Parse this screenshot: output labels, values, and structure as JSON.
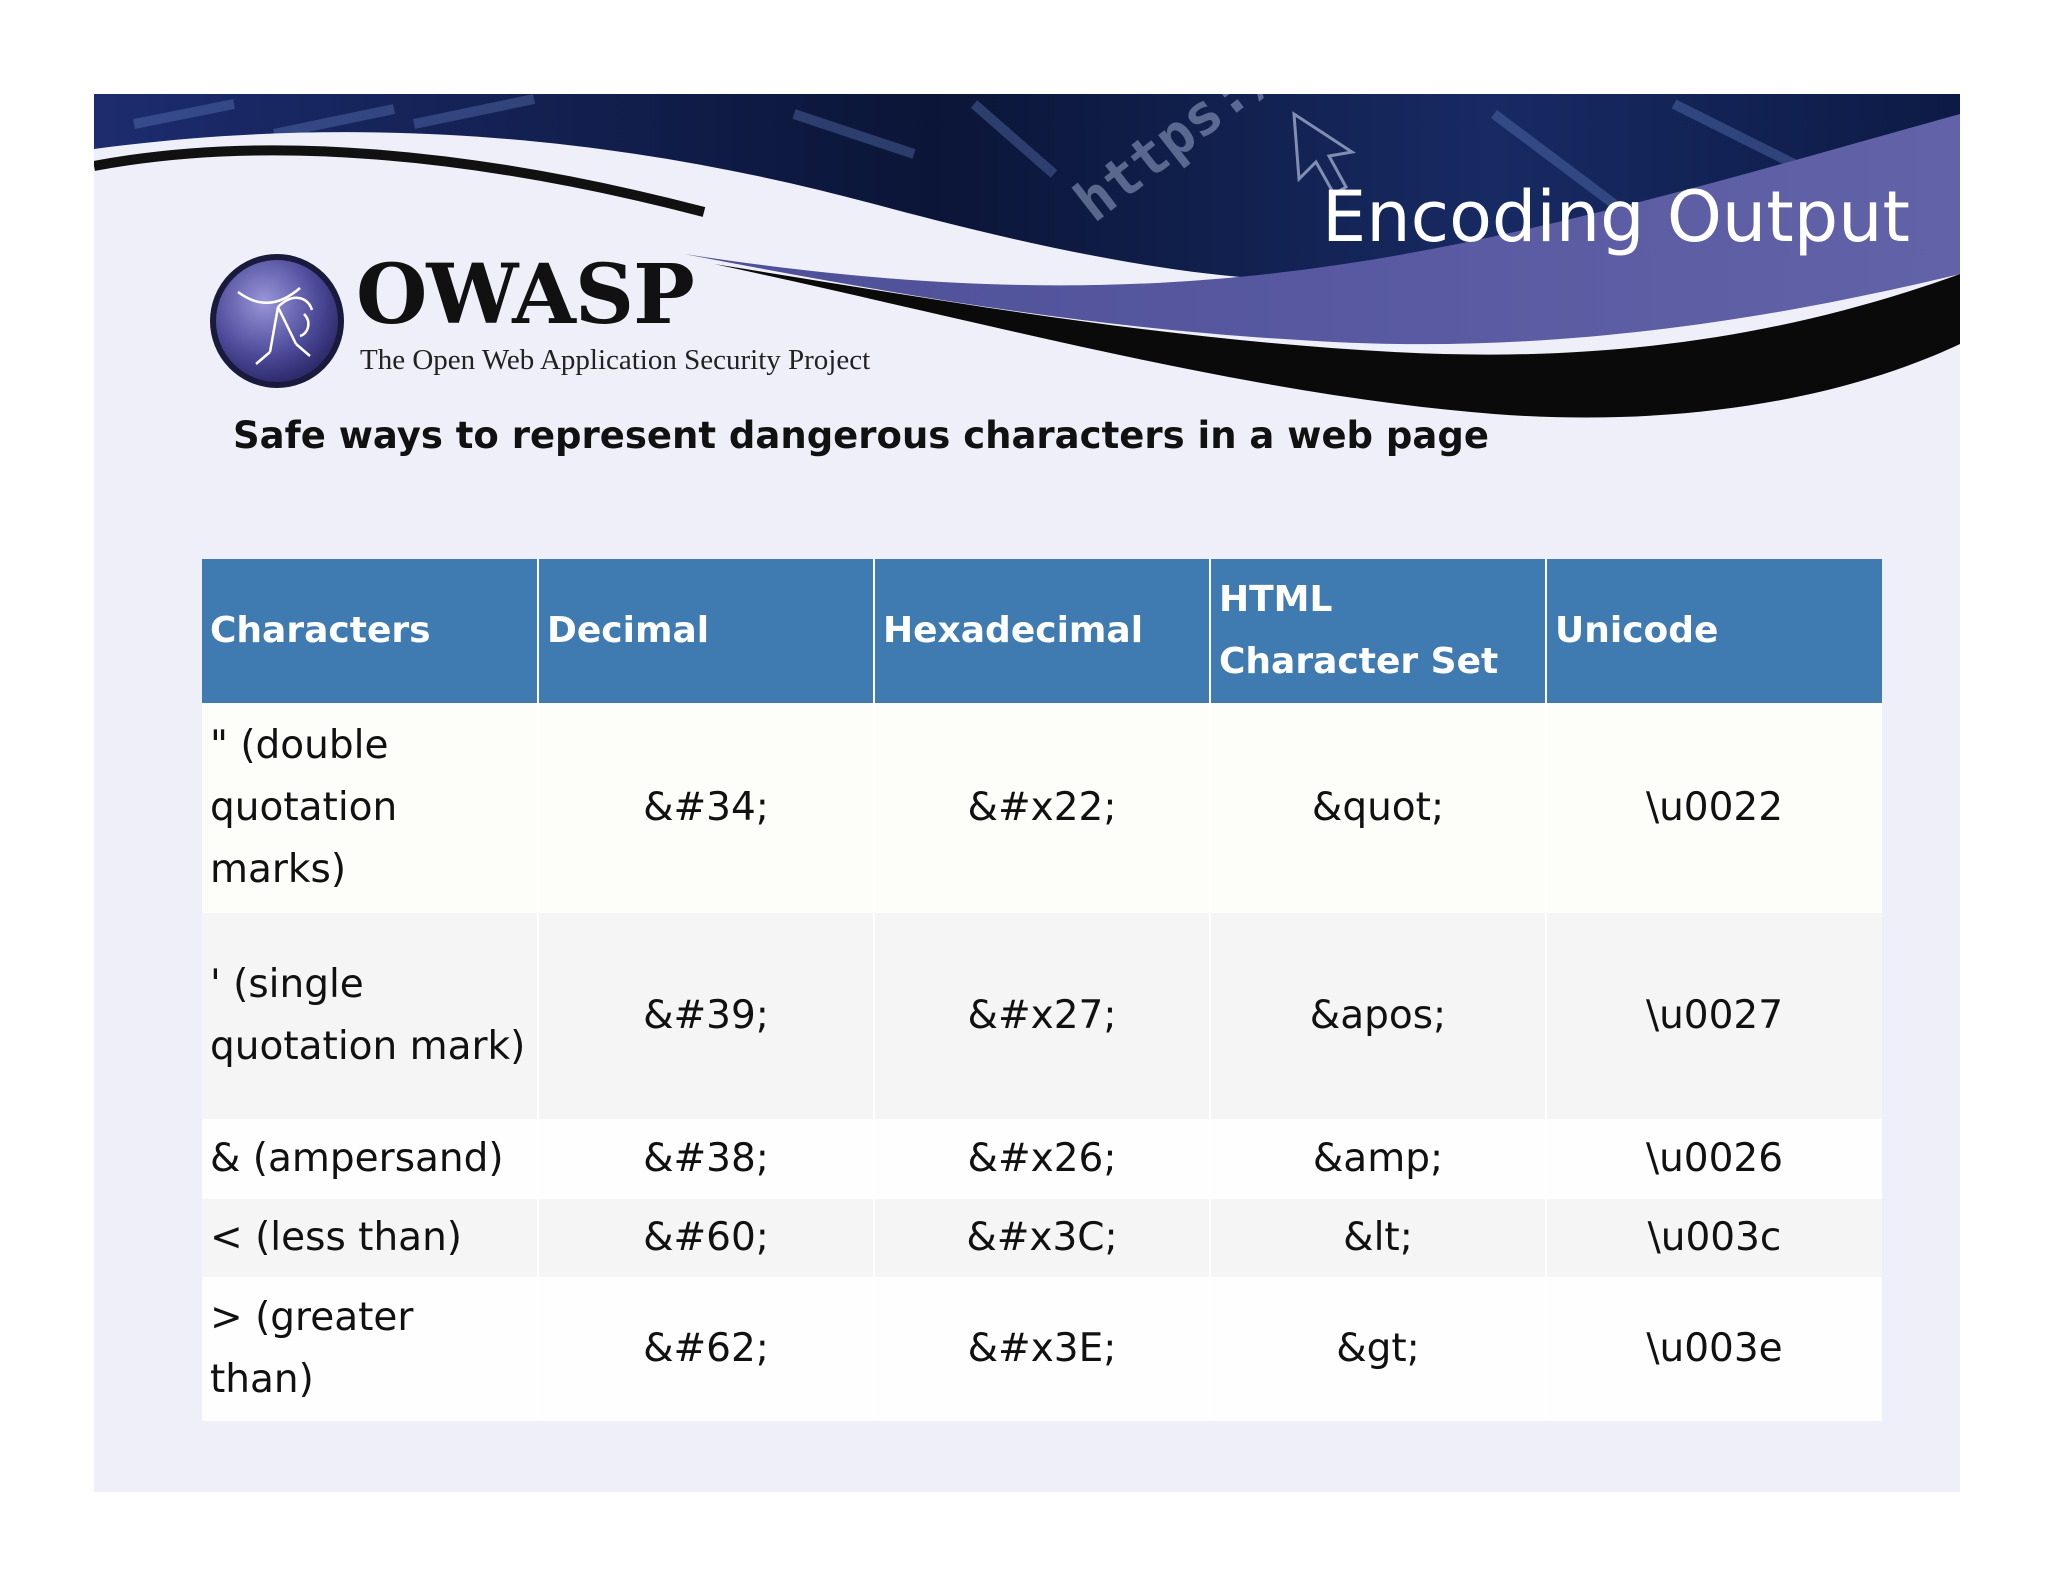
{
  "slide": {
    "title": "Encoding Output",
    "subtitle": "Safe ways to represent dangerous characters in a web page"
  },
  "logo": {
    "name": "OWASP",
    "tagline": "The Open Web Application Security Project"
  },
  "banner": {
    "url_text": "https://"
  },
  "table": {
    "headers": [
      "Characters",
      "Decimal",
      "Hexadecimal",
      "HTML Character Set",
      "Unicode"
    ],
    "rows": [
      [
        "\" (double quotation marks)",
        "&#34;",
        "&#x22;",
        "&quot;",
        "\\u0022"
      ],
      [
        "' (single quotation mark)",
        "&#39;",
        "&#x27;",
        "&apos;",
        "\\u0027"
      ],
      [
        "& (ampersand)",
        "&#38;",
        "&#x26;",
        "&amp;",
        "\\u0026"
      ],
      [
        "< (less than)",
        "&#60;",
        "&#x3C;",
        "&lt;",
        "\\u003c"
      ],
      [
        "> (greater than)",
        "&#62;",
        "&#x3E;",
        "&gt;",
        "\\u003e"
      ]
    ]
  },
  "colors": {
    "header_blue": "#3f7bb0",
    "banner_navy": "#0b1537",
    "banner_purple": "#5b5b9f",
    "slide_background": "#efeff9"
  }
}
